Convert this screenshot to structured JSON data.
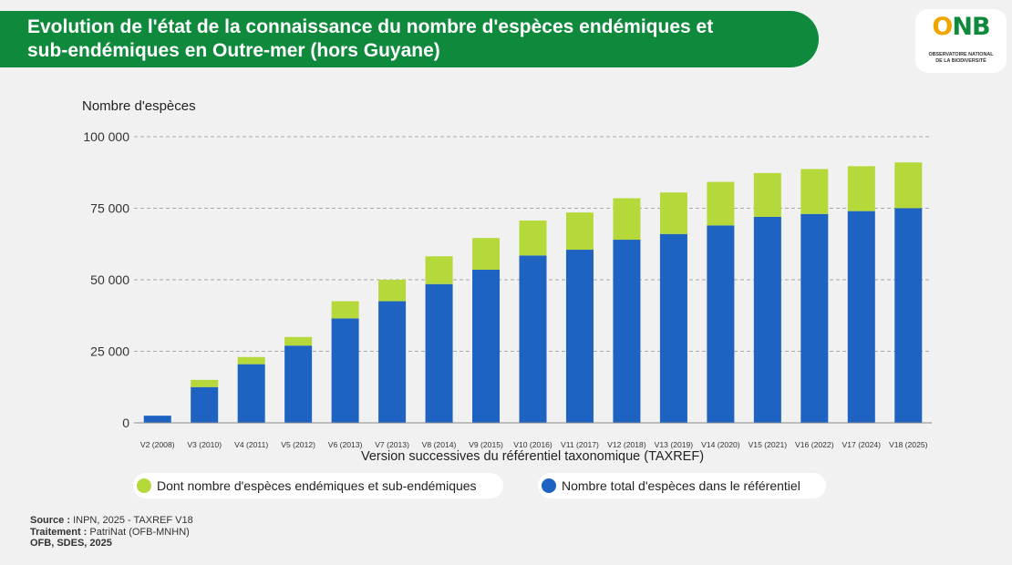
{
  "header": {
    "title_line1": "Evolution de l'état de la connaissance du nombre d'espèces endémiques et",
    "title_line2": "sub-endémiques en Outre-mer (hors Guyane)"
  },
  "logo": {
    "mark_o": "O",
    "mark_nb": "NB",
    "sub_line1": "OBSERVATOIRE NATIONAL",
    "sub_line2": "DE LA BIODIVERSITÉ"
  },
  "footer": {
    "source_label": "Source :",
    "source_value": " INPN, 2025 - TAXREF V18",
    "treatment_label": "Traitement :",
    "treatment_value": " PatriNat (OFB-MNHN)",
    "credit": "OFB, SDES, 2025"
  },
  "colors": {
    "endemic": "#b5d93a",
    "total": "#1e63c1",
    "banner": "#0f8a3c"
  },
  "chart_data": {
    "type": "bar",
    "stacked": true,
    "ylabel": "Nombre d'espèces",
    "xlabel": "Version successives du référentiel taxonomique (TAXREF)",
    "ylim": [
      0,
      100000
    ],
    "yticks": [
      0,
      25000,
      50000,
      75000,
      100000
    ],
    "ytick_labels": [
      "0",
      "25 000",
      "50 000",
      "75 000",
      "100 000"
    ],
    "grid": true,
    "legend_position": "bottom",
    "categories": [
      "V2 (2008)",
      "V3 (2010)",
      "V4 (2011)",
      "V5 (2012)",
      "V6 (2013)",
      "V7 (2013)",
      "V8 (2014)",
      "V9 (2015)",
      "V10 (2016)",
      "V11 (2017)",
      "V12 (2018)",
      "V13 (2019)",
      "V14 (2020)",
      "V15 (2021)",
      "V16 (2022)",
      "V17 (2024)",
      "V18 (2025)"
    ],
    "series": [
      {
        "name": "Nombre total d'espèces dans le référentiel",
        "values": [
          2500,
          12500,
          20500,
          27000,
          36500,
          42500,
          48500,
          53500,
          58500,
          60500,
          64000,
          66000,
          69000,
          72000,
          73000,
          74000,
          75000
        ]
      },
      {
        "name": "Dont nombre d'espèces endémiques et sub-endémiques",
        "values": [
          0,
          2500,
          2500,
          3000,
          6000,
          7500,
          9700,
          11100,
          12200,
          13000,
          14500,
          14500,
          15200,
          15300,
          15700,
          15700,
          16000
        ]
      }
    ],
    "legend": [
      "Dont nombre d'espèces endémiques et sub-endémiques",
      "Nombre total d'espèces dans le référentiel"
    ]
  }
}
